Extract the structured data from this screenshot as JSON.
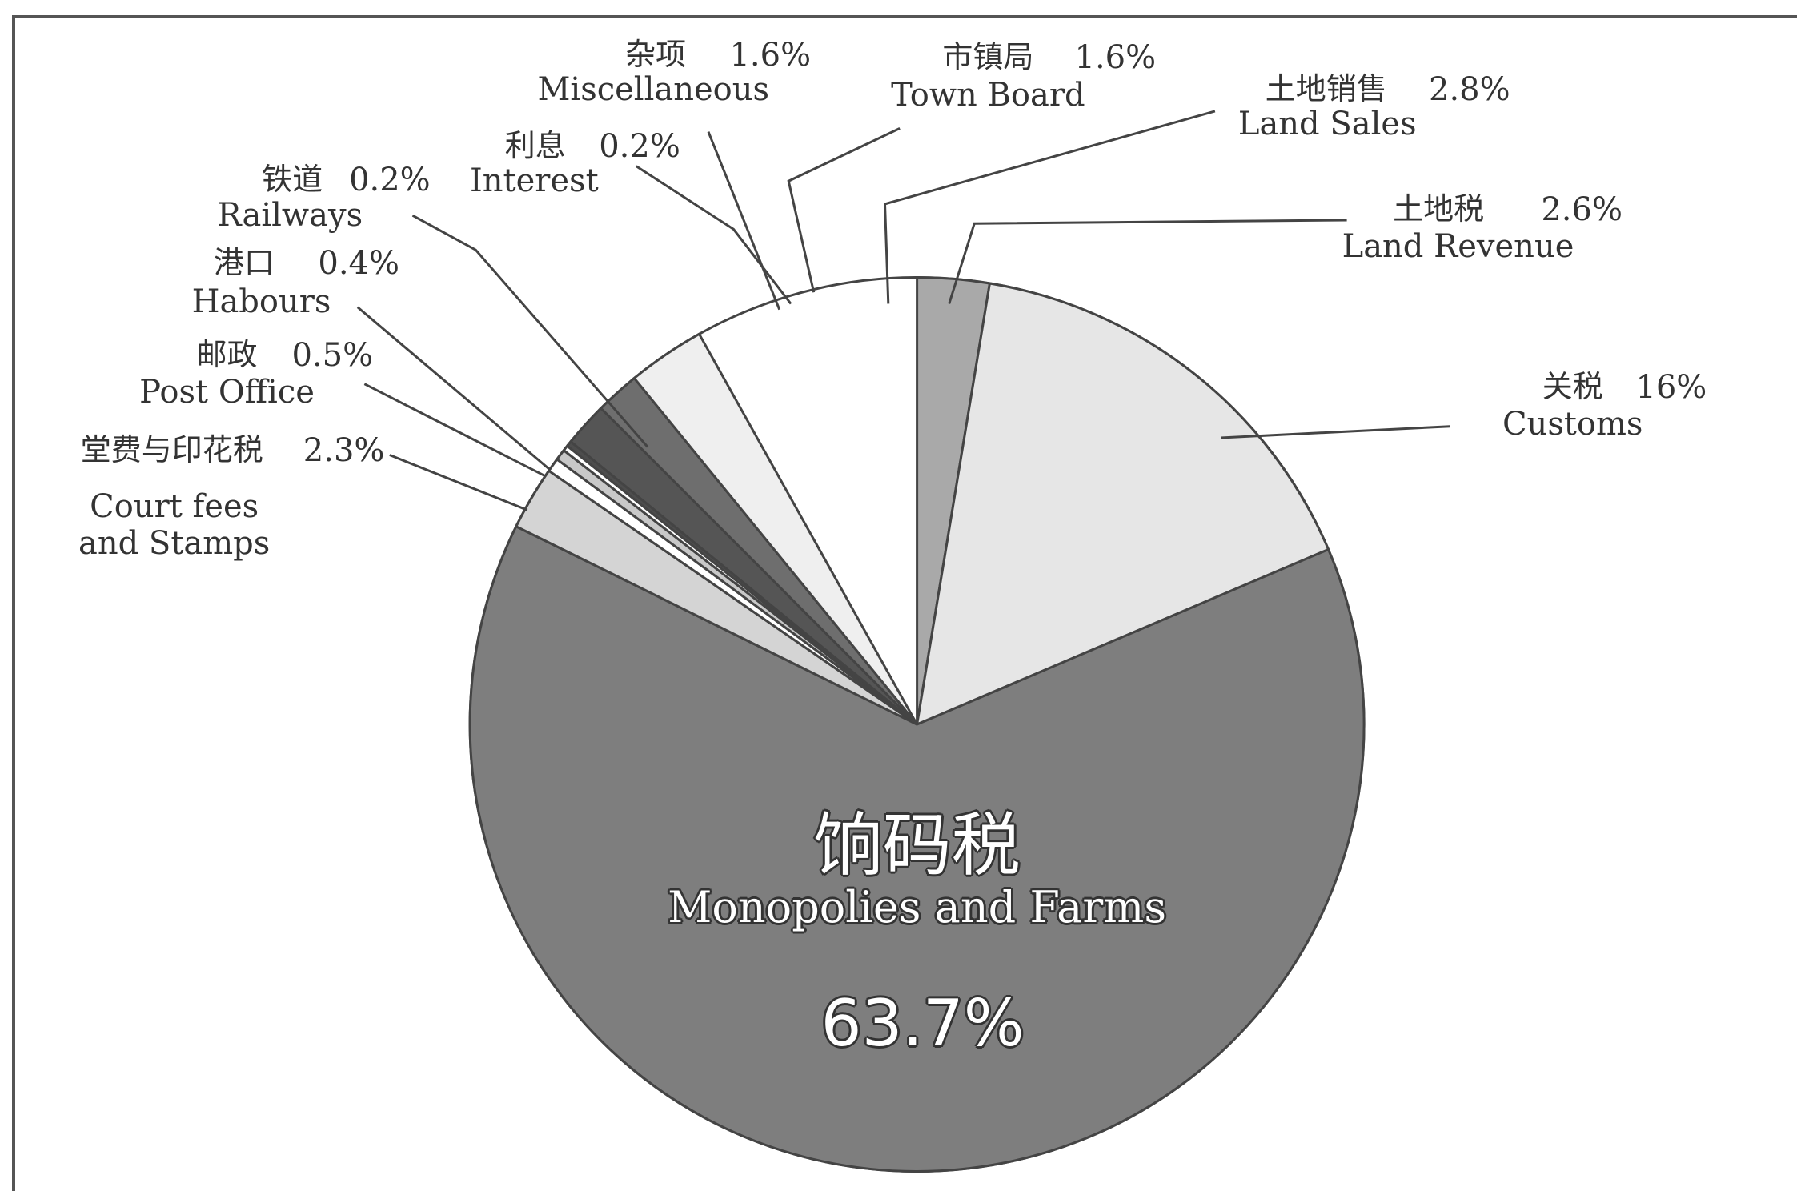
{
  "chart_data": {
    "type": "pie",
    "categories": [
      "Land Revenue",
      "Customs",
      "Monopolies and Farms",
      "Court fees and Stamps",
      "Post Office",
      "Habours",
      "Railways",
      "Interest",
      "Miscellaneous",
      "Town Board",
      "Land Sales"
    ],
    "categories_zh": [
      "土地税",
      "关税",
      "饷码税",
      "堂费与印花税",
      "邮政",
      "港口",
      "铁道",
      "利息",
      "杂项",
      "市镇局",
      "土地销售"
    ],
    "values": [
      2.6,
      16,
      63.7,
      2.3,
      0.5,
      0.4,
      0.2,
      0.2,
      1.6,
      1.6,
      2.8
    ],
    "value_labels": [
      "2.6%",
      "16%",
      "63.7%",
      "2.3%",
      "0.5%",
      "0.4%",
      "0.2%",
      "0.2%",
      "1.6%",
      "1.6%",
      "2.8%"
    ],
    "colors": [
      "#a9a9a9",
      "#e6e6e6",
      "#7e7e7e",
      "#d4d4d4",
      "#ffffff",
      "#c8c8c8",
      "#ffffff",
      "#4d4d4d",
      "#555555",
      "#6e6e6e",
      "#efefef"
    ]
  }
}
